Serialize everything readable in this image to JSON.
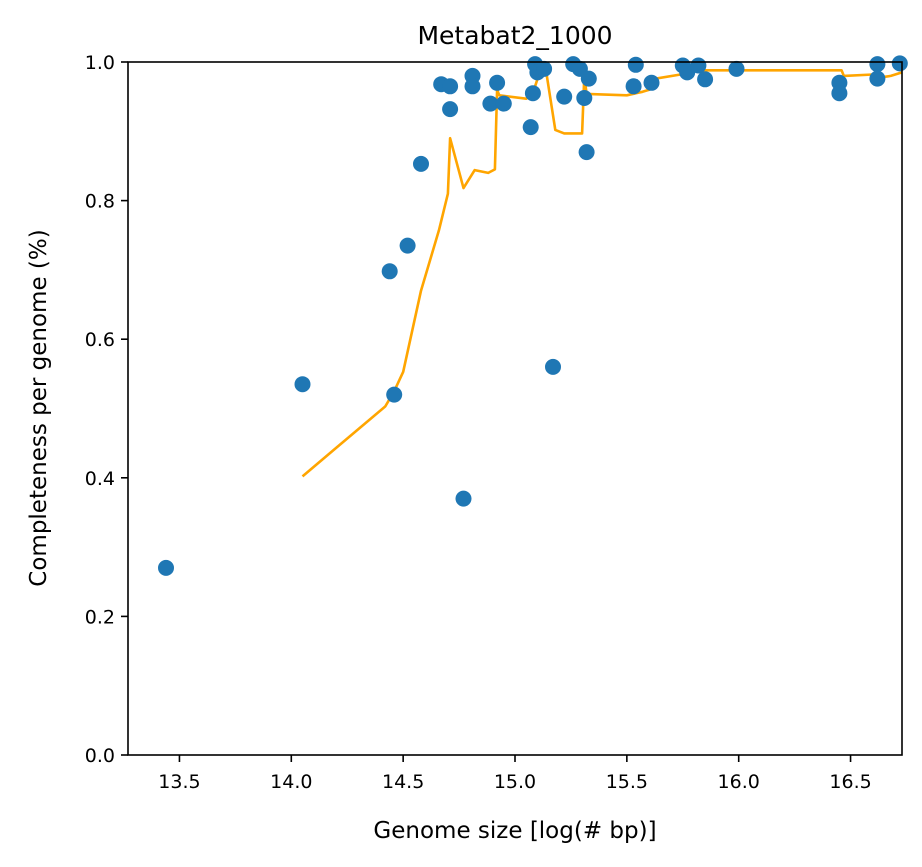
{
  "chart_data": {
    "type": "scatter",
    "title": "Metabat2_1000",
    "xlabel": "Genome size [log(# bp)]",
    "ylabel": "Completeness per genome (%)",
    "xlim": [
      13.27,
      16.73
    ],
    "ylim": [
      0.0,
      1.0
    ],
    "xticks": [
      "13.5",
      "14.0",
      "14.5",
      "15.0",
      "15.5",
      "16.0",
      "16.5"
    ],
    "yticks": [
      "0.0",
      "0.2",
      "0.4",
      "0.6",
      "0.8",
      "1.0"
    ],
    "grid": false,
    "colors": {
      "points": "#1f77b4",
      "trend": "#ffa500"
    },
    "series": [
      {
        "kind": "scatter",
        "points": [
          [
            13.44,
            0.27
          ],
          [
            14.05,
            0.535
          ],
          [
            14.44,
            0.698
          ],
          [
            14.46,
            0.52
          ],
          [
            14.52,
            0.735
          ],
          [
            14.58,
            0.853
          ],
          [
            14.67,
            0.968
          ],
          [
            14.71,
            0.965
          ],
          [
            14.71,
            0.932
          ],
          [
            14.77,
            0.37
          ],
          [
            14.81,
            0.98
          ],
          [
            14.81,
            0.965
          ],
          [
            14.89,
            0.94
          ],
          [
            14.92,
            0.97
          ],
          [
            14.95,
            0.94
          ],
          [
            15.07,
            0.906
          ],
          [
            15.08,
            0.955
          ],
          [
            15.09,
            0.997
          ],
          [
            15.1,
            0.985
          ],
          [
            15.13,
            0.99
          ],
          [
            15.17,
            0.56
          ],
          [
            15.22,
            0.95
          ],
          [
            15.26,
            0.997
          ],
          [
            15.29,
            0.99
          ],
          [
            15.31,
            0.948
          ],
          [
            15.32,
            0.87
          ],
          [
            15.33,
            0.976
          ],
          [
            15.53,
            0.965
          ],
          [
            15.54,
            0.996
          ],
          [
            15.61,
            0.97
          ],
          [
            15.75,
            0.995
          ],
          [
            15.77,
            0.985
          ],
          [
            15.82,
            0.995
          ],
          [
            15.85,
            0.975
          ],
          [
            15.99,
            0.99
          ],
          [
            16.45,
            0.97
          ],
          [
            16.45,
            0.955
          ],
          [
            16.62,
            0.997
          ],
          [
            16.62,
            0.976
          ],
          [
            16.72,
            0.998
          ]
        ]
      },
      {
        "kind": "line",
        "points": [
          [
            14.05,
            0.402
          ],
          [
            14.2,
            0.443
          ],
          [
            14.42,
            0.503
          ],
          [
            14.46,
            0.525
          ],
          [
            14.5,
            0.553
          ],
          [
            14.58,
            0.67
          ],
          [
            14.66,
            0.757
          ],
          [
            14.7,
            0.81
          ],
          [
            14.71,
            0.89
          ],
          [
            14.77,
            0.818
          ],
          [
            14.82,
            0.844
          ],
          [
            14.88,
            0.84
          ],
          [
            14.91,
            0.845
          ],
          [
            14.92,
            0.96
          ],
          [
            14.93,
            0.952
          ],
          [
            15.05,
            0.947
          ],
          [
            15.08,
            0.955
          ],
          [
            15.11,
            0.985
          ],
          [
            15.14,
            0.985
          ],
          [
            15.18,
            0.902
          ],
          [
            15.22,
            0.897
          ],
          [
            15.3,
            0.897
          ],
          [
            15.31,
            0.98
          ],
          [
            15.32,
            0.954
          ],
          [
            15.5,
            0.952
          ],
          [
            15.57,
            0.957
          ],
          [
            15.6,
            0.96
          ],
          [
            15.61,
            0.975
          ],
          [
            15.74,
            0.982
          ],
          [
            15.8,
            0.988
          ],
          [
            16.0,
            0.988
          ],
          [
            16.46,
            0.988
          ],
          [
            16.47,
            0.98
          ],
          [
            16.6,
            0.982
          ],
          [
            16.64,
            0.978
          ],
          [
            16.68,
            0.98
          ],
          [
            16.73,
            0.985
          ]
        ]
      }
    ]
  }
}
